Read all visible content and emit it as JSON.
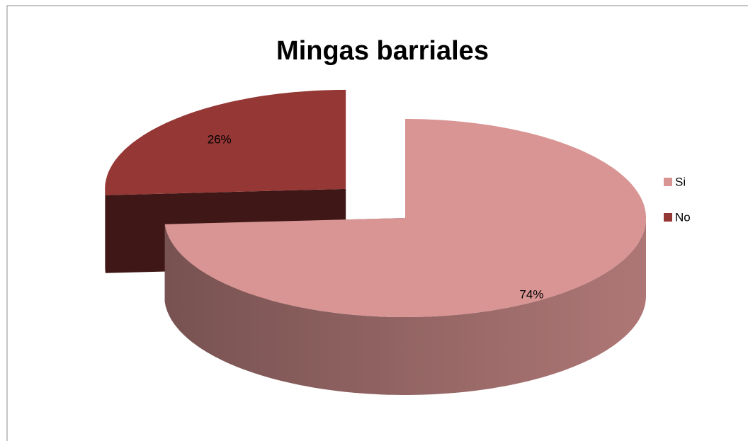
{
  "chart_data": {
    "type": "pie",
    "title": "Mingas barriales",
    "categories": [
      "Si",
      "No"
    ],
    "values": [
      74,
      26
    ],
    "value_labels": [
      "74%",
      "26%"
    ],
    "colors": [
      "#d99594",
      "#953735"
    ],
    "legend": "right"
  }
}
